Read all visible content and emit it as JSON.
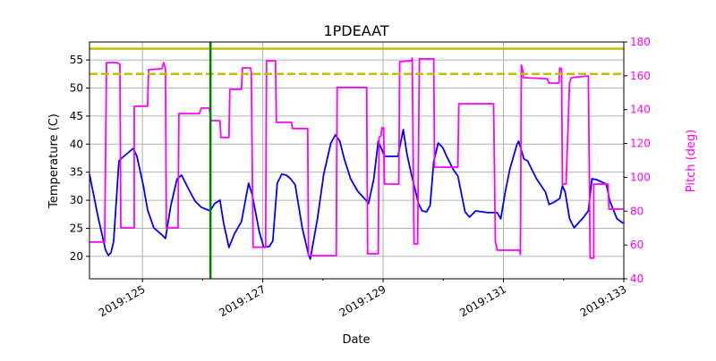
{
  "chart_data": {
    "type": "line",
    "title": "1PDEAAT",
    "xlabel": "Date",
    "ylabel": "Temperature (C)",
    "y2label": "Pitch (deg)",
    "xlim": [
      124.12,
      133
    ],
    "ylim": [
      16,
      58.2
    ],
    "y2lim": [
      40,
      180
    ],
    "grid": true,
    "x_ticks": [
      125,
      127,
      129,
      131,
      133
    ],
    "x_tick_labels": [
      "2019:125",
      "2019:127",
      "2019:129",
      "2019:131",
      "2019:133"
    ],
    "x_minor_ticks": [
      126,
      128,
      130,
      132
    ],
    "y_ticks": [
      20,
      25,
      30,
      35,
      40,
      45,
      50,
      55
    ],
    "y_tick_labels": [
      "20",
      "25",
      "30",
      "35",
      "40",
      "45",
      "50",
      "55"
    ],
    "y2_ticks": [
      40,
      60,
      80,
      100,
      120,
      140,
      160,
      180
    ],
    "y2_tick_labels": [
      "40",
      "60",
      "80",
      "100",
      "120",
      "140",
      "160",
      "180"
    ],
    "colors": {
      "temperature": "#0000ff",
      "pitch": "#ff00ff",
      "limit": "#bfbf00",
      "marker": "#008000",
      "grid": "#b0b0b0"
    },
    "hlines": [
      {
        "y": 57.0,
        "style": "solid",
        "color": "#bfbf00"
      },
      {
        "y": 52.5,
        "style": "dashed",
        "color": "#bfbf00"
      }
    ],
    "vlines": [
      {
        "x": 126.13,
        "color": "#008000"
      }
    ],
    "series": [
      {
        "axis": "left",
        "color": "#0000ff",
        "points": [
          [
            124.12,
            34.64
          ],
          [
            124.269,
            26.68
          ],
          [
            124.387,
            21.11
          ],
          [
            124.432,
            20.16
          ],
          [
            124.477,
            20.64
          ],
          [
            124.521,
            22.7
          ],
          [
            124.61,
            37.02
          ],
          [
            124.655,
            37.5
          ],
          [
            124.848,
            39.25
          ],
          [
            124.908,
            37.82
          ],
          [
            125.012,
            32.73
          ],
          [
            125.086,
            28.27
          ],
          [
            125.19,
            25.09
          ],
          [
            125.309,
            23.98
          ],
          [
            125.383,
            23.18
          ],
          [
            125.472,
            29.07
          ],
          [
            125.576,
            33.84
          ],
          [
            125.65,
            34.48
          ],
          [
            125.754,
            32.25
          ],
          [
            125.873,
            29.86
          ],
          [
            125.977,
            28.75
          ],
          [
            126.126,
            28.11
          ],
          [
            126.2,
            29.39
          ],
          [
            126.289,
            30.02
          ],
          [
            126.349,
            25.89
          ],
          [
            126.438,
            21.59
          ],
          [
            126.527,
            23.98
          ],
          [
            126.646,
            26.2
          ],
          [
            126.765,
            33.04
          ],
          [
            126.824,
            30.98
          ],
          [
            126.943,
            24.3
          ],
          [
            127.018,
            21.59
          ],
          [
            127.107,
            21.75
          ],
          [
            127.166,
            22.7
          ],
          [
            127.241,
            33.04
          ],
          [
            127.315,
            34.64
          ],
          [
            127.389,
            34.48
          ],
          [
            127.463,
            33.84
          ],
          [
            127.538,
            32.73
          ],
          [
            127.656,
            25.09
          ],
          [
            127.76,
            20.32
          ],
          [
            127.79,
            19.52
          ],
          [
            127.909,
            26.68
          ],
          [
            128.013,
            34.64
          ],
          [
            128.132,
            40.2
          ],
          [
            128.206,
            41.64
          ],
          [
            128.281,
            40.52
          ],
          [
            128.355,
            37.34
          ],
          [
            128.459,
            33.84
          ],
          [
            128.578,
            31.61
          ],
          [
            128.726,
            29.86
          ],
          [
            128.756,
            29.39
          ],
          [
            128.845,
            33.84
          ],
          [
            128.919,
            40.52
          ],
          [
            128.994,
            38.61
          ],
          [
            129.023,
            37.82
          ],
          [
            129.246,
            37.82
          ],
          [
            129.335,
            42.59
          ],
          [
            129.395,
            38.29
          ],
          [
            129.469,
            34.64
          ],
          [
            129.588,
            29.39
          ],
          [
            129.648,
            28.11
          ],
          [
            129.722,
            27.95
          ],
          [
            129.781,
            29.07
          ],
          [
            129.841,
            36.86
          ],
          [
            129.915,
            40.2
          ],
          [
            129.989,
            39.41
          ],
          [
            130.064,
            37.66
          ],
          [
            130.168,
            35.43
          ],
          [
            130.242,
            34.32
          ],
          [
            130.361,
            27.95
          ],
          [
            130.435,
            27.0
          ],
          [
            130.539,
            28.11
          ],
          [
            130.732,
            27.8
          ],
          [
            130.896,
            27.8
          ],
          [
            130.955,
            26.68
          ],
          [
            131.029,
            31.45
          ],
          [
            131.104,
            35.43
          ],
          [
            131.223,
            39.89
          ],
          [
            131.252,
            40.52
          ],
          [
            131.341,
            37.34
          ],
          [
            131.401,
            37.02
          ],
          [
            131.549,
            33.84
          ],
          [
            131.698,
            31.45
          ],
          [
            131.758,
            29.23
          ],
          [
            131.847,
            29.7
          ],
          [
            131.936,
            30.34
          ],
          [
            131.98,
            32.57
          ],
          [
            132.025,
            31.45
          ],
          [
            132.099,
            26.68
          ],
          [
            132.174,
            25.09
          ],
          [
            132.322,
            26.84
          ],
          [
            132.411,
            28.11
          ],
          [
            132.471,
            33.84
          ],
          [
            132.545,
            33.68
          ],
          [
            132.709,
            32.89
          ],
          [
            132.768,
            29.86
          ],
          [
            132.887,
            26.68
          ],
          [
            132.991,
            25.89
          ]
        ]
      },
      {
        "axis": "right",
        "color": "#ff00ff",
        "points": [
          [
            124.12,
            61.7
          ],
          [
            124.373,
            61.7
          ],
          [
            124.402,
            167.8
          ],
          [
            124.581,
            167.8
          ],
          [
            124.625,
            166.8
          ],
          [
            124.64,
            70.1
          ],
          [
            124.863,
            70.1
          ],
          [
            124.863,
            142.0
          ],
          [
            125.086,
            142.0
          ],
          [
            125.101,
            163.6
          ],
          [
            125.324,
            164.2
          ],
          [
            125.353,
            167.8
          ],
          [
            125.383,
            164.2
          ],
          [
            125.398,
            70.1
          ],
          [
            125.591,
            70.1
          ],
          [
            125.606,
            137.7
          ],
          [
            125.948,
            137.7
          ],
          [
            125.977,
            140.9
          ],
          [
            126.111,
            140.9
          ],
          [
            126.141,
            133.5
          ],
          [
            126.289,
            133.5
          ],
          [
            126.304,
            123.5
          ],
          [
            126.438,
            123.5
          ],
          [
            126.453,
            152.0
          ],
          [
            126.646,
            152.0
          ],
          [
            126.661,
            164.7
          ],
          [
            126.795,
            164.7
          ],
          [
            126.81,
            162.0
          ],
          [
            126.839,
            58.7
          ],
          [
            127.047,
            58.7
          ],
          [
            127.062,
            168.9
          ],
          [
            127.211,
            168.9
          ],
          [
            127.226,
            132.5
          ],
          [
            127.478,
            132.5
          ],
          [
            127.493,
            128.8
          ],
          [
            127.746,
            128.8
          ],
          [
            127.76,
            53.7
          ],
          [
            128.221,
            53.7
          ],
          [
            128.236,
            153.1
          ],
          [
            128.726,
            153.1
          ],
          [
            128.741,
            54.8
          ],
          [
            128.919,
            54.8
          ],
          [
            128.934,
            123.5
          ],
          [
            128.964,
            124.5
          ],
          [
            128.979,
            129.3
          ],
          [
            129.009,
            129.3
          ],
          [
            129.023,
            96.0
          ],
          [
            129.261,
            96.0
          ],
          [
            129.276,
            168.4
          ],
          [
            129.469,
            168.9
          ],
          [
            129.484,
            170.5
          ],
          [
            129.514,
            60.6
          ],
          [
            129.573,
            60.6
          ],
          [
            129.603,
            170.0
          ],
          [
            129.841,
            170.0
          ],
          [
            129.856,
            106.0
          ],
          [
            130.242,
            106.0
          ],
          [
            130.257,
            143.5
          ],
          [
            130.836,
            143.5
          ],
          [
            130.866,
            62.2
          ],
          [
            130.896,
            56.9
          ],
          [
            131.267,
            56.9
          ],
          [
            131.282,
            54.3
          ],
          [
            131.297,
            166.3
          ],
          [
            131.326,
            162.6
          ],
          [
            131.326,
            158.9
          ],
          [
            131.728,
            158.3
          ],
          [
            131.758,
            155.7
          ],
          [
            131.921,
            155.7
          ],
          [
            131.936,
            164.7
          ],
          [
            131.966,
            164.2
          ],
          [
            131.98,
            96.0
          ],
          [
            132.04,
            96.0
          ],
          [
            132.099,
            156.2
          ],
          [
            132.129,
            158.9
          ],
          [
            132.411,
            159.9
          ],
          [
            132.441,
            52.2
          ],
          [
            132.5,
            52.2
          ],
          [
            132.5,
            96.0
          ],
          [
            132.738,
            96.0
          ],
          [
            132.753,
            81.2
          ],
          [
            132.991,
            81.2
          ]
        ]
      }
    ]
  }
}
